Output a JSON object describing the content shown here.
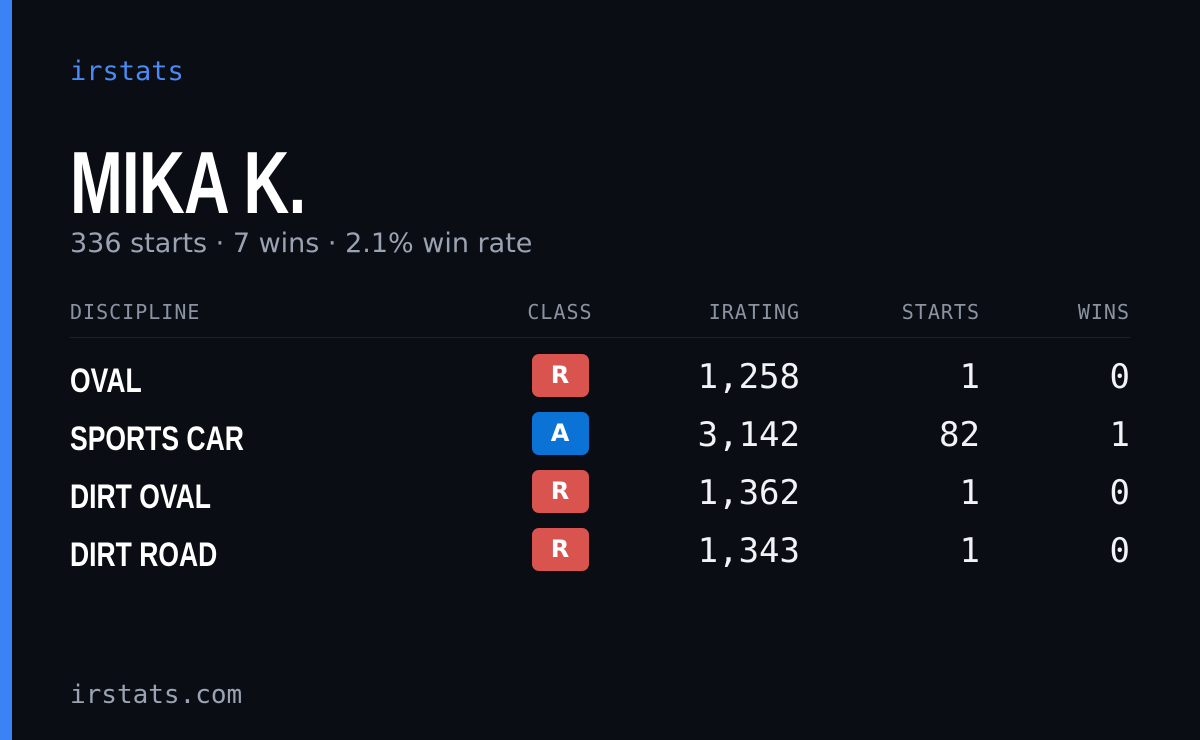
{
  "brand": "irstats",
  "driver": {
    "name": "MIKA K.",
    "summary": "336 starts · 7 wins · 2.1% win rate"
  },
  "table": {
    "headers": [
      "DISCIPLINE",
      "CLASS",
      "IRATING",
      "STARTS",
      "WINS"
    ],
    "rows": [
      {
        "discipline": "OVAL",
        "class": "R",
        "class_color": "#d9534f",
        "irating": "1,258",
        "starts": "1",
        "wins": "0"
      },
      {
        "discipline": "SPORTS CAR",
        "class": "A",
        "class_color": "#0b72d6",
        "irating": "3,142",
        "starts": "82",
        "wins": "1"
      },
      {
        "discipline": "DIRT OVAL",
        "class": "R",
        "class_color": "#d9534f",
        "irating": "1,362",
        "starts": "1",
        "wins": "0"
      },
      {
        "discipline": "DIRT ROAD",
        "class": "R",
        "class_color": "#d9534f",
        "irating": "1,343",
        "starts": "1",
        "wins": "0"
      }
    ]
  },
  "footer": "irstats.com"
}
